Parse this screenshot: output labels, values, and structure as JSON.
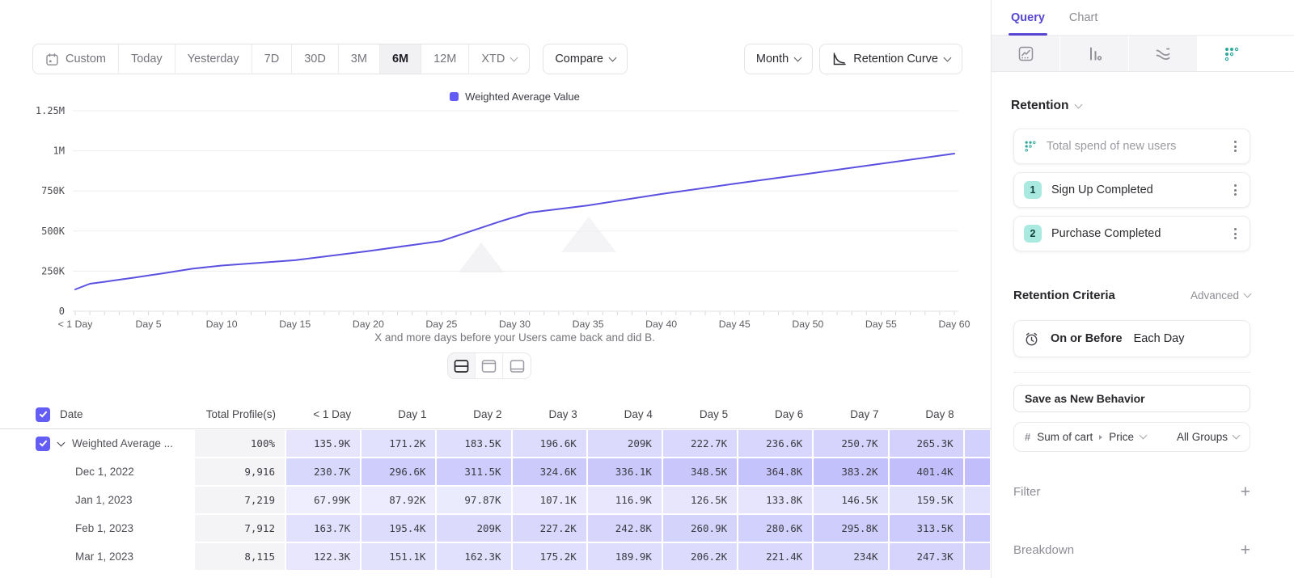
{
  "toolbar": {
    "ranges": [
      "Custom",
      "Today",
      "Yesterday",
      "7D",
      "30D",
      "3M",
      "6M",
      "12M",
      "XTD"
    ],
    "selected_range": "6M",
    "compare_label": "Compare",
    "granularity_label": "Month",
    "chart_type_label": "Retention Curve"
  },
  "chart_data": {
    "type": "line",
    "legend": [
      {
        "label": "Weighted Average Value",
        "color": "#635df5"
      }
    ],
    "legend_position": "top-center",
    "grid": "horizontal",
    "xlabel": "X and more days before your Users came back and did B.",
    "x_tick_labels": [
      "< 1 Day",
      "Day 5",
      "Day 10",
      "Day 15",
      "Day 20",
      "Day 25",
      "Day 30",
      "Day 35",
      "Day 40",
      "Day 45",
      "Day 50",
      "Day 55",
      "Day 60"
    ],
    "x_tick_days": [
      0,
      5,
      10,
      15,
      20,
      25,
      30,
      35,
      40,
      45,
      50,
      55,
      60
    ],
    "xlim_days": [
      0,
      60
    ],
    "y_tick_labels": [
      "1.25M",
      "1M",
      "750K",
      "500K",
      "250K",
      "0"
    ],
    "y_tick_values": [
      1250000,
      1000000,
      750000,
      500000,
      250000,
      0
    ],
    "ylim": [
      0,
      1250000
    ],
    "series": [
      {
        "name": "Weighted Average Value",
        "color": "#5b50e0",
        "x": [
          0,
          1,
          2,
          3,
          4,
          5,
          6,
          7,
          8,
          10,
          15,
          20,
          25,
          29,
          31,
          35,
          40,
          45,
          50,
          55,
          60
        ],
        "y": [
          135900,
          171200,
          183500,
          196600,
          209000,
          222700,
          236600,
          250700,
          265300,
          285000,
          318000,
          375000,
          438000,
          560000,
          615000,
          660000,
          731000,
          795000,
          857000,
          920000,
          983000
        ]
      }
    ]
  },
  "layout_toggle": {
    "options": [
      "split-view",
      "chart-top",
      "table-top"
    ],
    "selected": "split-view"
  },
  "table": {
    "headers": [
      "Date",
      "Total Profile(s)",
      "< 1 Day",
      "Day 1",
      "Day 2",
      "Day 3",
      "Day 4",
      "Day 5",
      "Day 6",
      "Day 7",
      "Day 8"
    ],
    "rows": [
      {
        "label": "Weighted Average ...",
        "expandable": true,
        "checked": true,
        "total": "100%",
        "values": [
          "135.9K",
          "171.2K",
          "183.5K",
          "196.6K",
          "209K",
          "222.7K",
          "236.6K",
          "250.7K",
          "265.3K"
        ]
      },
      {
        "label": "Dec 1, 2022",
        "indent": true,
        "total": "9,916",
        "values": [
          "230.7K",
          "296.6K",
          "311.5K",
          "324.6K",
          "336.1K",
          "348.5K",
          "364.8K",
          "383.2K",
          "401.4K"
        ]
      },
      {
        "label": "Jan 1, 2023",
        "indent": true,
        "total": "7,219",
        "values": [
          "67.99K",
          "87.92K",
          "97.87K",
          "107.1K",
          "116.9K",
          "126.5K",
          "133.8K",
          "146.5K",
          "159.5K"
        ]
      },
      {
        "label": "Feb 1, 2023",
        "indent": true,
        "total": "7,912",
        "values": [
          "163.7K",
          "195.4K",
          "209K",
          "227.2K",
          "242.8K",
          "260.9K",
          "280.6K",
          "295.8K",
          "313.5K"
        ]
      },
      {
        "label": "Mar 1, 2023",
        "indent": true,
        "total": "8,115",
        "values": [
          "122.3K",
          "151.1K",
          "162.3K",
          "175.2K",
          "189.9K",
          "206.2K",
          "221.4K",
          "234K",
          "247.3K"
        ]
      }
    ]
  },
  "query_panel": {
    "tabs": [
      "Query",
      "Chart"
    ],
    "active_tab": "Query",
    "report_icons": [
      "insights-icon",
      "funnels-icon",
      "flows-icon",
      "retention-icon"
    ],
    "active_report": "retention",
    "section_title": "Retention",
    "behavior_name": "Total spend of new users",
    "steps": [
      {
        "num": "1",
        "label": "Sign Up Completed"
      },
      {
        "num": "2",
        "label": "Purchase Completed"
      }
    ],
    "criteria": {
      "title": "Retention Criteria",
      "mode": "Advanced",
      "condition_bold": "On or Before",
      "condition_rest": "Each Day"
    },
    "save_button": "Save as New Behavior",
    "measurement": {
      "hash": "#",
      "event": "Sum of cart",
      "prop": "Price",
      "group": "All Groups"
    },
    "filter_label": "Filter",
    "breakdown_label": "Breakdown"
  },
  "colors": {
    "accent": "#5b50e0",
    "legend_swatch": "#635df5",
    "tab_active": "#5747d0",
    "teal": "#2fa89a",
    "badge_bg": "#a9e9e0",
    "heat_base_rgb": "99,93,244",
    "gray_cell": "#f4f4f6"
  }
}
